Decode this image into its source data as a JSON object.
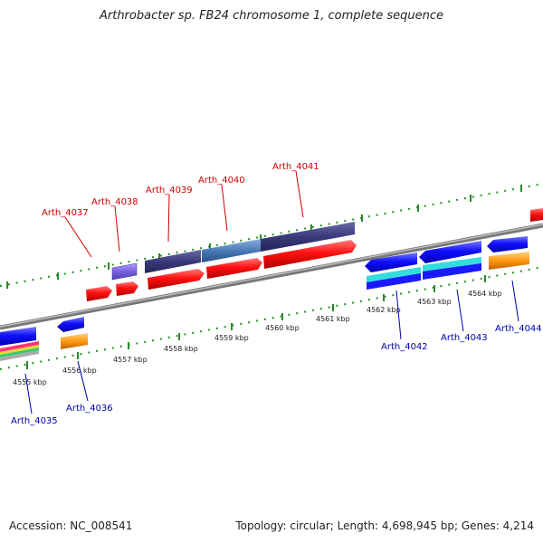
{
  "title": "Arthrobacter sp. FB24 chromosome 1, complete sequence",
  "accession": "Accession: NC_008541",
  "summary": "Topology: circular; Length: 4,698,945 bp; Genes: 4,214",
  "scale_labels": [
    "4555 kbp",
    "4556 kbp",
    "4557 kbp",
    "4558 kbp",
    "4559 kbp",
    "4560 kbp",
    "4561 kbp",
    "4562 kbp",
    "4563 kbp",
    "4564 kbp"
  ],
  "gene_labels": {
    "forward": [
      "Arth_4037",
      "Arth_4038",
      "Arth_4039",
      "Arth_4040",
      "Arth_4041"
    ],
    "reverse": [
      "Arth_4035",
      "Arth_4036",
      "Arth_4042",
      "Arth_4043",
      "Arth_4044"
    ]
  },
  "colors": {
    "forward_label": "#cc0000",
    "reverse_label": "#0000aa",
    "backbone": "#888888",
    "ticks": "#2a8a2a"
  }
}
